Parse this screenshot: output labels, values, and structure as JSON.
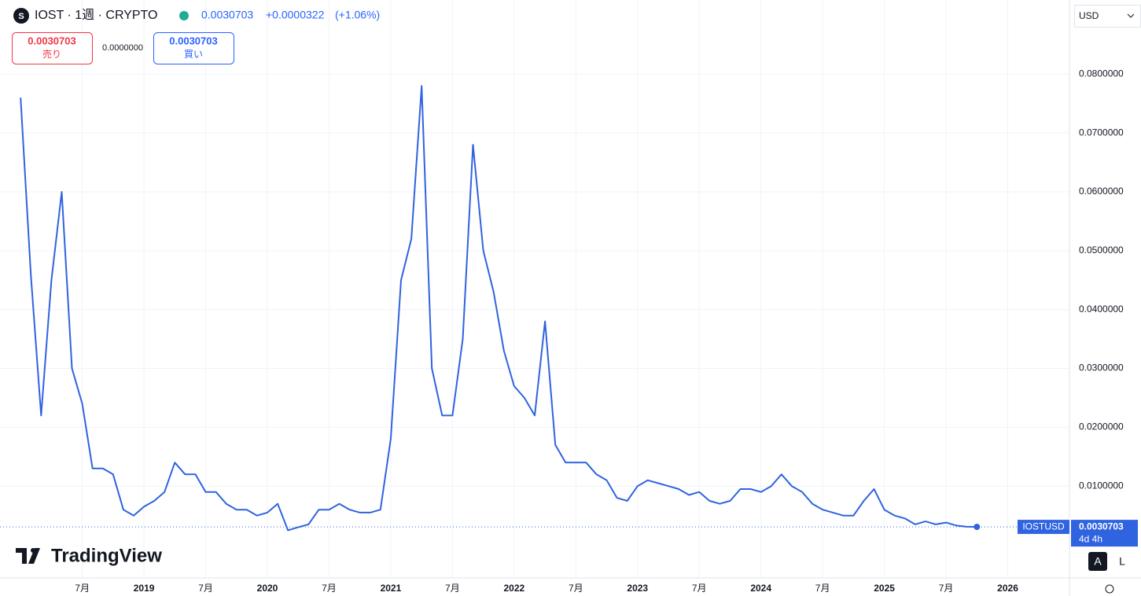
{
  "chart_data": {
    "type": "line",
    "x": [
      "2018-01",
      "2018-02",
      "2018-03",
      "2018-04",
      "2018-05",
      "2018-06",
      "2018-07",
      "2018-08",
      "2018-09",
      "2018-10",
      "2018-11",
      "2018-12",
      "2019-01",
      "2019-02",
      "2019-03",
      "2019-04",
      "2019-05",
      "2019-06",
      "2019-07",
      "2019-08",
      "2019-09",
      "2019-10",
      "2019-11",
      "2019-12",
      "2020-01",
      "2020-02",
      "2020-03",
      "2020-04",
      "2020-05",
      "2020-06",
      "2020-07",
      "2020-08",
      "2020-09",
      "2020-10",
      "2020-11",
      "2020-12",
      "2021-01",
      "2021-02",
      "2021-03",
      "2021-04",
      "2021-05",
      "2021-06",
      "2021-07",
      "2021-08",
      "2021-09",
      "2021-10",
      "2021-11",
      "2021-12",
      "2022-01",
      "2022-02",
      "2022-03",
      "2022-04",
      "2022-05",
      "2022-06",
      "2022-07",
      "2022-08",
      "2022-09",
      "2022-10",
      "2022-11",
      "2022-12",
      "2023-01",
      "2023-02",
      "2023-03",
      "2023-04",
      "2023-05",
      "2023-06",
      "2023-07",
      "2023-08",
      "2023-09",
      "2023-10",
      "2023-11",
      "2023-12",
      "2024-01",
      "2024-02",
      "2024-03",
      "2024-04",
      "2024-05",
      "2024-06",
      "2024-07",
      "2024-08",
      "2024-09",
      "2024-10",
      "2024-11",
      "2024-12",
      "2025-01",
      "2025-02",
      "2025-03",
      "2025-04",
      "2025-05",
      "2025-06",
      "2025-07",
      "2025-08",
      "2025-09",
      "2025-10"
    ],
    "series": [
      {
        "name": "IOSTUSD",
        "color": "#2f63e0",
        "values": [
          0.076,
          0.046,
          0.022,
          0.045,
          0.06,
          0.03,
          0.024,
          0.013,
          0.013,
          0.012,
          0.006,
          0.005,
          0.0065,
          0.0075,
          0.009,
          0.014,
          0.012,
          0.012,
          0.009,
          0.009,
          0.007,
          0.006,
          0.006,
          0.005,
          0.0055,
          0.007,
          0.0025,
          0.003,
          0.0035,
          0.006,
          0.006,
          0.007,
          0.006,
          0.0055,
          0.0055,
          0.006,
          0.018,
          0.045,
          0.052,
          0.078,
          0.03,
          0.022,
          0.022,
          0.035,
          0.068,
          0.05,
          0.043,
          0.033,
          0.027,
          0.025,
          0.022,
          0.038,
          0.017,
          0.014,
          0.014,
          0.014,
          0.012,
          0.011,
          0.008,
          0.0075,
          0.01,
          0.011,
          0.0105,
          0.01,
          0.0095,
          0.0085,
          0.009,
          0.0075,
          0.007,
          0.0075,
          0.0095,
          0.0095,
          0.009,
          0.01,
          0.012,
          0.01,
          0.009,
          0.007,
          0.006,
          0.0055,
          0.005,
          0.005,
          0.0075,
          0.0095,
          0.006,
          0.005,
          0.0045,
          0.0035,
          0.004,
          0.0035,
          0.0038,
          0.0033,
          0.0031,
          0.0030703
        ]
      }
    ],
    "xlim": [
      "2017-11",
      "2026-07"
    ],
    "xticks": [
      {
        "value": "2018-07",
        "label": "7月"
      },
      {
        "value": "2019-01",
        "label": "2019"
      },
      {
        "value": "2019-07",
        "label": "7月"
      },
      {
        "value": "2020-01",
        "label": "2020"
      },
      {
        "value": "2020-07",
        "label": "7月"
      },
      {
        "value": "2021-01",
        "label": "2021"
      },
      {
        "value": "2021-07",
        "label": "7月"
      },
      {
        "value": "2022-01",
        "label": "2022"
      },
      {
        "value": "2022-07",
        "label": "7月"
      },
      {
        "value": "2023-01",
        "label": "2023"
      },
      {
        "value": "2023-07",
        "label": "7月"
      },
      {
        "value": "2024-01",
        "label": "2024"
      },
      {
        "value": "2024-07",
        "label": "7月"
      },
      {
        "value": "2025-01",
        "label": "2025"
      },
      {
        "value": "2025-07",
        "label": "7月"
      },
      {
        "value": "2026-01",
        "label": "2026"
      }
    ],
    "ylim": [
      -0.0056,
      0.0926
    ],
    "yticks": [
      {
        "value": 0.01,
        "label": "0.0100000"
      },
      {
        "value": 0.02,
        "label": "0.0200000"
      },
      {
        "value": 0.03,
        "label": "0.0300000"
      },
      {
        "value": 0.04,
        "label": "0.0400000"
      },
      {
        "value": 0.05,
        "label": "0.0500000"
      },
      {
        "value": 0.06,
        "label": "0.0600000"
      },
      {
        "value": 0.07,
        "label": "0.0700000"
      },
      {
        "value": 0.08,
        "label": "0.0800000"
      }
    ],
    "grid": true
  },
  "ui": {
    "symbol": "IOST · 1週 · CRYPTO",
    "price": "0.0030703",
    "change": "+0.0000322",
    "change_pct": "(+1.06%)",
    "sell_label": "売り",
    "spread": "0.0000000",
    "buy_label": "買い",
    "currency": "USD",
    "tag": "IOSTUSD",
    "countdown": "4d 4h",
    "buttons": [
      "A",
      "L"
    ],
    "logo": "TradingView"
  }
}
